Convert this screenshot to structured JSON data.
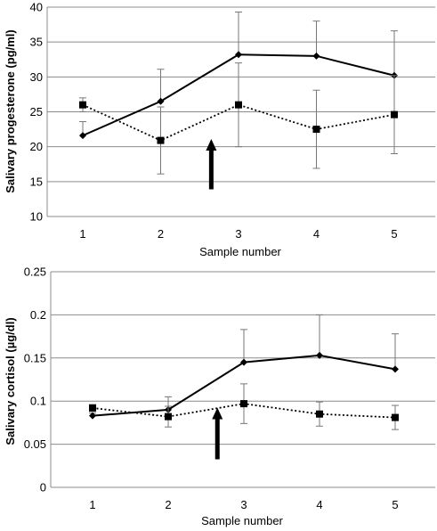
{
  "chart_data": [
    {
      "type": "line",
      "xlabel": "Sample number",
      "ylabel": "Salivary progesterone (pg/ml)",
      "ylim": [
        10,
        40
      ],
      "yticks": [
        10,
        15,
        20,
        25,
        30,
        35,
        40
      ],
      "x": [
        1,
        2,
        3,
        4,
        5
      ],
      "grid": true,
      "series": [
        {
          "style": "solid-diamond",
          "values": [
            21.6,
            26.5,
            33.2,
            33.0,
            30.2
          ],
          "err": [
            2.0,
            4.6,
            6.1,
            5.0,
            6.4
          ]
        },
        {
          "style": "dotted-square",
          "values": [
            26.0,
            20.9,
            26.0,
            22.5,
            24.6
          ],
          "err": [
            1.0,
            4.8,
            6.0,
            5.6,
            5.6
          ]
        }
      ],
      "arrow_at_x": 2.65
    },
    {
      "type": "line",
      "xlabel": "Sample number",
      "ylabel": "Salivary cortisol (µg/dl)",
      "ylim": [
        0,
        0.25
      ],
      "yticks": [
        0,
        0.05,
        0.1,
        0.15,
        0.2,
        0.25
      ],
      "x": [
        1,
        2,
        3,
        4,
        5
      ],
      "grid": true,
      "series": [
        {
          "style": "solid-diamond",
          "values": [
            0.083,
            0.09,
            0.145,
            0.153,
            0.137
          ],
          "err": [
            0.003,
            0.015,
            0.038,
            0.047,
            0.041
          ]
        },
        {
          "style": "dotted-square",
          "values": [
            0.092,
            0.082,
            0.097,
            0.085,
            0.081
          ],
          "err": [
            0.004,
            0.012,
            0.023,
            0.014,
            0.014
          ]
        }
      ],
      "arrow_at_x": 2.65
    }
  ]
}
